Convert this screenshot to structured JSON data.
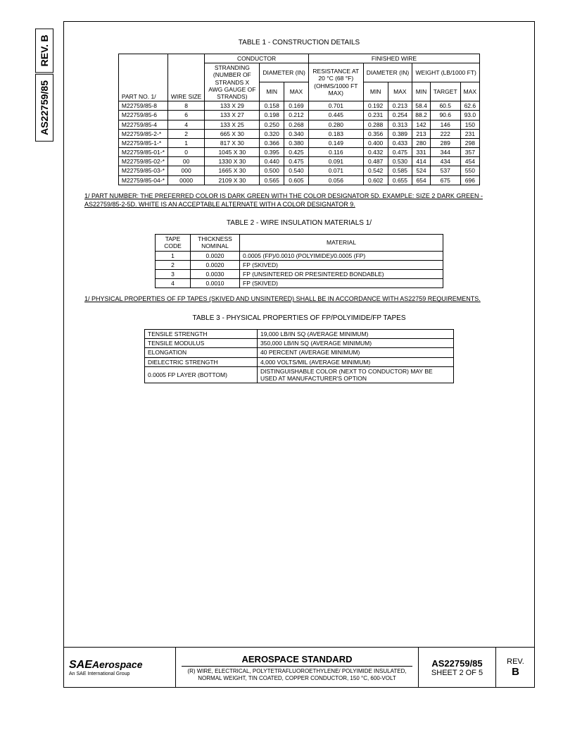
{
  "side": {
    "rev_label": "REV.",
    "rev_letter": "B",
    "doc": "AS22759/85"
  },
  "table1": {
    "title": "TABLE 1 - CONSTRUCTION DETAILS",
    "h_conductor": "CONDUCTOR",
    "h_finished": "FINISHED WIRE",
    "h_stranding": "STRANDING (NUMBER OF STRANDS X AWG GAUGE OF STRANDS)",
    "h_diameter": "DIAMETER (IN)",
    "h_resistance": "RESISTANCE AT 20 °C (68 °F) (OHMS/1000 FT MAX)",
    "h_weight": "WEIGHT (LB/1000 FT)",
    "h_part": "PART NO. 1/",
    "h_size": "WIRE SIZE",
    "h_min": "MIN",
    "h_max": "MAX",
    "h_target": "TARGET",
    "rows": [
      [
        "M22759/85-8",
        "8",
        "133 X 29",
        "0.158",
        "0.169",
        "0.701",
        "0.192",
        "0.213",
        "58.4",
        "60.5",
        "62.6"
      ],
      [
        "M22759/85-6",
        "6",
        "133 X 27",
        "0.198",
        "0.212",
        "0.445",
        "0.231",
        "0.254",
        "88.2",
        "90.6",
        "93.0"
      ],
      [
        "M22759/85-4",
        "4",
        "133 X 25",
        "0.250",
        "0.268",
        "0.280",
        "0.288",
        "0.313",
        "142",
        "146",
        "150"
      ],
      [
        "M22759/85-2-*",
        "2",
        "665 X 30",
        "0.320",
        "0.340",
        "0.183",
        "0.356",
        "0.389",
        "213",
        "222",
        "231"
      ],
      [
        "M22759/85-1-*",
        "1",
        "817 X 30",
        "0.366",
        "0.380",
        "0.149",
        "0.400",
        "0.433",
        "280",
        "289",
        "298"
      ],
      [
        "M22759/85-01-*",
        "0",
        "1045 X 30",
        "0.395",
        "0.425",
        "0.116",
        "0.432",
        "0.475",
        "331",
        "344",
        "357"
      ],
      [
        "M22759/85-02-*",
        "00",
        "1330 X 30",
        "0.440",
        "0.475",
        "0.091",
        "0.487",
        "0.530",
        "414",
        "434",
        "454"
      ],
      [
        "M22759/85-03-*",
        "000",
        "1665 X 30",
        "0.500",
        "0.540",
        "0.071",
        "0.542",
        "0.585",
        "524",
        "537",
        "550"
      ],
      [
        "M22759/85-04-*",
        "0000",
        "2109 X 30",
        "0.565",
        "0.605",
        "0.056",
        "0.602",
        "0.655",
        "654",
        "675",
        "696"
      ]
    ]
  },
  "note1": "1/ PART NUMBER:  THE PREFERRED COLOR IS DARK GREEN WITH THE COLOR DESIGNATOR 5D.  EXAMPLE:  SIZE 2 DARK GREEN - AS22759/85-2-5D.  WHITE IS AN ACCEPTABLE ALTERNATE WITH A COLOR DESIGNATOR 9.",
  "table2": {
    "title": "TABLE 2 - WIRE INSULATION MATERIALS 1/",
    "h_tape": "TAPE CODE",
    "h_thick": "THICKNESS NOMINAL",
    "h_mat": "MATERIAL",
    "rows": [
      [
        "1",
        "0.0020",
        "0.0005 (FP)/0.0010 (POLYIMIDE)/0.0005 (FP)"
      ],
      [
        "2",
        "0.0020",
        "FP (SKIVED)"
      ],
      [
        "3",
        "0.0030",
        "FP (UNSINTERED OR PRESINTERED BONDABLE)"
      ],
      [
        "4",
        "0.0010",
        "FP (SKIVED)"
      ]
    ]
  },
  "note2": "1/ PHYSICAL PROPERTIES OF FP TAPES (SKIVED AND UNSINTERED) SHALL BE IN ACCORDANCE WITH AS22759 REQUIREMENTS.",
  "table3": {
    "title": "TABLE 3 - PHYSICAL PROPERTIES OF FP/POLYIMIDE/FP TAPES",
    "rows": [
      [
        "TENSILE STRENGTH",
        "19,000 LB/IN SQ (AVERAGE MINIMUM)"
      ],
      [
        "TENSILE MODULUS",
        "350,000 LB/IN SQ (AVERAGE MINIMUM)"
      ],
      [
        "ELONGATION",
        "40 PERCENT (AVERAGE MINIMUM)"
      ],
      [
        "DIELECTRIC STRENGTH",
        "4,000 VOLTS/MIL (AVERAGE MINIMUM)"
      ],
      [
        "0.0005 FP LAYER (BOTTOM)",
        "DISTINGUISHABLE COLOR (NEXT TO CONDUCTOR) MAY BE USED AT MANUFACTURER'S OPTION"
      ]
    ]
  },
  "footer": {
    "logo_brand": "SAE",
    "logo_word": "Aerospace",
    "logo_sub": "An SAE International Group",
    "std_title": "AEROSPACE STANDARD",
    "std_desc": "(R) WIRE, ELECTRICAL, POLYTETRAFLUOROETHYLENE/ POLYIMIDE INSULATED, NORMAL WEIGHT, TIN COATED, COPPER CONDUCTOR, 150 °C, 600-VOLT",
    "doc": "AS22759/85",
    "sheet": "SHEET 2 OF 5",
    "rev_label": "REV.",
    "rev_letter": "B"
  }
}
